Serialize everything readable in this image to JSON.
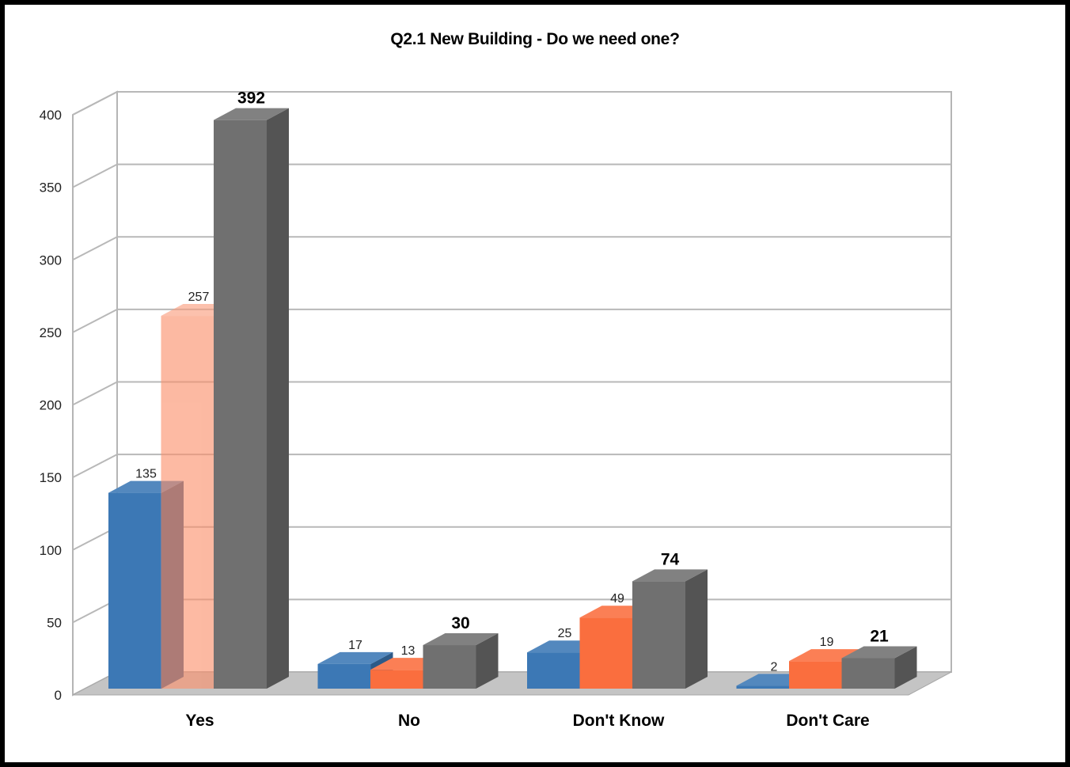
{
  "chart_data": {
    "type": "bar",
    "title": "Q2.1 New Building - Do we need one?",
    "xlabel": "",
    "ylabel": "",
    "categories": [
      "Yes",
      "No",
      "Don't Know",
      "Don't Care"
    ],
    "series": [
      {
        "values": [
          135,
          17,
          25,
          2
        ],
        "color": "#3c78b5"
      },
      {
        "values": [
          257,
          13,
          49,
          19
        ],
        "color": "#fa6e3e"
      },
      {
        "values": [
          392,
          30,
          74,
          21
        ],
        "color": "#707070"
      }
    ],
    "ylim": [
      0,
      400
    ],
    "yticks": [
      0,
      50,
      100,
      150,
      200,
      250,
      300,
      350,
      400
    ],
    "grid": true,
    "legend": "none",
    "style": "3d-clustered-column",
    "highlight_note": "the orange bar in the Yes group is drawn semi-transparent"
  }
}
